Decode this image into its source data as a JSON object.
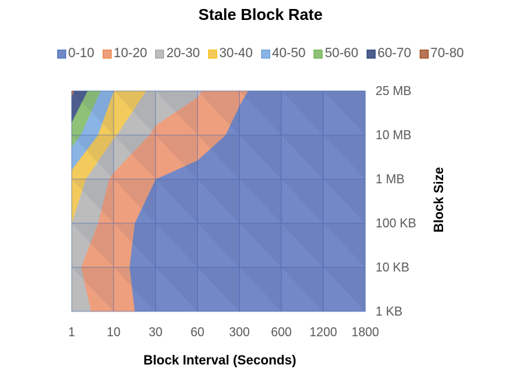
{
  "chart_data": {
    "type": "surface-contour",
    "title": "Stale Block Rate",
    "xlabel": "Block Interval (Seconds)",
    "ylabel": "Block Size",
    "x": [
      "1",
      "10",
      "30",
      "60",
      "300",
      "600",
      "1200",
      "1800"
    ],
    "y": [
      "1 KB",
      "10 KB",
      "100 KB",
      "1 MB",
      "10 MB",
      "25 MB"
    ],
    "legend_position": "top",
    "bands": [
      {
        "range": "0-10",
        "color": "#7388c6",
        "border": "#4472c4"
      },
      {
        "range": "10-20",
        "color": "#ee9f7e",
        "border": "#ed7d31"
      },
      {
        "range": "20-30",
        "color": "#bcbcbc",
        "border": "#a5a5a5"
      },
      {
        "range": "30-40",
        "color": "#f3cb5c",
        "border": "#ffc000"
      },
      {
        "range": "40-50",
        "color": "#8ab4e4",
        "border": "#5b9bd5"
      },
      {
        "range": "50-60",
        "color": "#8fc277",
        "border": "#70ad47"
      },
      {
        "range": "60-70",
        "color": "#4e5f8e",
        "border": "#264478"
      },
      {
        "range": "70-80",
        "color": "#b87459",
        "border": "#9e480e"
      }
    ],
    "stale_rate_percent": [
      [
        25,
        14,
        6,
        4,
        2,
        1,
        1,
        1
      ],
      [
        22,
        13,
        5,
        3,
        2,
        1,
        1,
        1
      ],
      [
        30,
        14,
        6,
        4,
        2,
        1,
        1,
        1
      ],
      [
        36,
        18,
        10,
        7,
        4,
        2,
        1,
        1
      ],
      [
        55,
        31,
        18,
        14,
        8,
        4,
        2,
        1
      ],
      [
        72,
        40,
        27,
        21,
        11,
        6,
        3,
        2
      ]
    ]
  }
}
